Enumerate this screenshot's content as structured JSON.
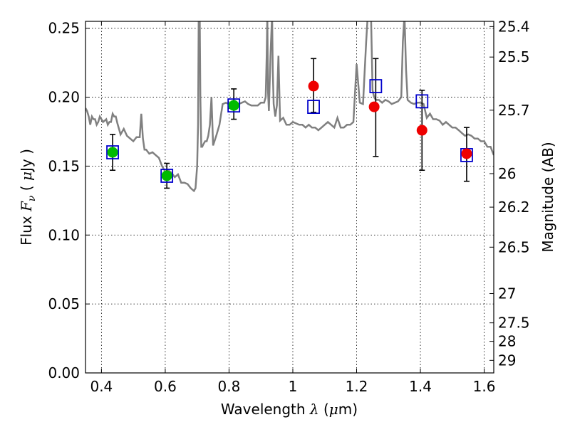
{
  "chart_data": {
    "type": "scatter",
    "xlabel": {
      "pre": "Wavelength ",
      "sym": "λ",
      "mid": " (",
      "mu": "μ",
      "post": "m)"
    },
    "ylabel": {
      "pre": "Flux ",
      "sym": "F",
      "sub": "ν",
      "mid": " ( ",
      "mu": "μ",
      "post": "Jy )"
    },
    "y2label": "Magnitude (AB)",
    "xlim": [
      0.35,
      1.63
    ],
    "ylim": [
      0.0,
      0.255
    ],
    "grid": true,
    "x_ticks": [
      {
        "v": 0.4,
        "label": "0.4"
      },
      {
        "v": 0.6,
        "label": "0.6"
      },
      {
        "v": 0.8,
        "label": "0.8"
      },
      {
        "v": 1.0,
        "label": "1"
      },
      {
        "v": 1.2,
        "label": "1.2"
      },
      {
        "v": 1.4,
        "label": "1.4"
      },
      {
        "v": 1.6,
        "label": "1.6"
      }
    ],
    "y_ticks": [
      {
        "v": 0.0,
        "label": "0.00"
      },
      {
        "v": 0.05,
        "label": "0.05"
      },
      {
        "v": 0.1,
        "label": "0.10"
      },
      {
        "v": 0.15,
        "label": "0.15"
      },
      {
        "v": 0.2,
        "label": "0.20"
      },
      {
        "v": 0.25,
        "label": "0.25"
      }
    ],
    "mag_ticks": [
      {
        "mag": 25.4,
        "label": "25.4"
      },
      {
        "mag": 25.5,
        "label": "25.5"
      },
      {
        "mag": 25.7,
        "label": "25.7"
      },
      {
        "mag": 26.0,
        "label": "26"
      },
      {
        "mag": 26.2,
        "label": "26.2"
      },
      {
        "mag": 26.5,
        "label": "26.5"
      },
      {
        "mag": 27.0,
        "label": "27"
      },
      {
        "mag": 27.5,
        "label": "27.5"
      },
      {
        "mag": 28.0,
        "label": "28"
      },
      {
        "mag": 29.0,
        "label": "29"
      }
    ],
    "series": [
      {
        "marker": "line",
        "color": "#808080",
        "x": [
          0.35,
          0.355,
          0.36,
          0.365,
          0.37,
          0.375,
          0.38,
          0.385,
          0.39,
          0.395,
          0.4,
          0.405,
          0.41,
          0.415,
          0.42,
          0.425,
          0.43,
          0.435,
          0.44,
          0.445,
          0.45,
          0.46,
          0.47,
          0.48,
          0.49,
          0.5,
          0.51,
          0.52,
          0.525,
          0.53,
          0.535,
          0.54,
          0.55,
          0.56,
          0.57,
          0.58,
          0.59,
          0.6,
          0.61,
          0.62,
          0.63,
          0.64,
          0.65,
          0.66,
          0.67,
          0.68,
          0.69,
          0.695,
          0.7,
          0.703,
          0.705,
          0.708,
          0.71,
          0.713,
          0.716,
          0.72,
          0.725,
          0.73,
          0.735,
          0.74,
          0.745,
          0.75,
          0.76,
          0.77,
          0.78,
          0.79,
          0.8,
          0.81,
          0.82,
          0.83,
          0.84,
          0.85,
          0.86,
          0.87,
          0.88,
          0.89,
          0.9,
          0.91,
          0.915,
          0.918,
          0.92,
          0.922,
          0.925,
          0.93,
          0.935,
          0.937,
          0.94,
          0.945,
          0.95,
          0.955,
          0.96,
          0.97,
          0.98,
          0.99,
          1.0,
          1.01,
          1.02,
          1.03,
          1.04,
          1.05,
          1.06,
          1.07,
          1.08,
          1.09,
          1.1,
          1.11,
          1.12,
          1.13,
          1.14,
          1.15,
          1.16,
          1.17,
          1.18,
          1.19,
          1.2,
          1.21,
          1.22,
          1.23,
          1.235,
          1.24,
          1.245,
          1.25,
          1.255,
          1.26,
          1.27,
          1.28,
          1.29,
          1.3,
          1.31,
          1.32,
          1.33,
          1.34,
          1.345,
          1.35,
          1.355,
          1.36,
          1.37,
          1.38,
          1.39,
          1.4,
          1.41,
          1.42,
          1.43,
          1.44,
          1.45,
          1.46,
          1.47,
          1.48,
          1.49,
          1.5,
          1.51,
          1.52,
          1.53,
          1.54,
          1.55,
          1.56,
          1.57,
          1.58,
          1.59,
          1.6,
          1.61,
          1.62,
          1.63
        ],
        "y": [
          0.192,
          0.19,
          0.186,
          0.18,
          0.186,
          0.184,
          0.184,
          0.18,
          0.182,
          0.186,
          0.184,
          0.182,
          0.183,
          0.184,
          0.18,
          0.182,
          0.182,
          0.188,
          0.186,
          0.186,
          0.181,
          0.173,
          0.177,
          0.172,
          0.17,
          0.168,
          0.171,
          0.171,
          0.188,
          0.17,
          0.162,
          0.162,
          0.159,
          0.16,
          0.158,
          0.156,
          0.15,
          0.146,
          0.147,
          0.145,
          0.142,
          0.144,
          0.138,
          0.138,
          0.137,
          0.134,
          0.132,
          0.134,
          0.15,
          0.18,
          0.26,
          0.26,
          0.2,
          0.164,
          0.164,
          0.166,
          0.168,
          0.168,
          0.172,
          0.18,
          0.2,
          0.165,
          0.172,
          0.18,
          0.195,
          0.196,
          0.195,
          0.194,
          0.196,
          0.195,
          0.196,
          0.197,
          0.195,
          0.194,
          0.194,
          0.194,
          0.196,
          0.196,
          0.2,
          0.23,
          0.26,
          0.205,
          0.19,
          0.23,
          0.26,
          0.22,
          0.195,
          0.186,
          0.194,
          0.23,
          0.183,
          0.185,
          0.18,
          0.18,
          0.182,
          0.181,
          0.18,
          0.18,
          0.178,
          0.18,
          0.178,
          0.178,
          0.176,
          0.178,
          0.18,
          0.182,
          0.18,
          0.178,
          0.185,
          0.178,
          0.178,
          0.18,
          0.18,
          0.182,
          0.224,
          0.196,
          0.195,
          0.24,
          0.26,
          0.26,
          0.26,
          0.205,
          0.2,
          0.198,
          0.198,
          0.196,
          0.198,
          0.197,
          0.195,
          0.196,
          0.197,
          0.2,
          0.24,
          0.26,
          0.22,
          0.198,
          0.196,
          0.195,
          0.196,
          0.196,
          0.195,
          0.185,
          0.188,
          0.184,
          0.184,
          0.183,
          0.18,
          0.182,
          0.18,
          0.178,
          0.178,
          0.176,
          0.174,
          0.172,
          0.173,
          0.172,
          0.17,
          0.17,
          0.168,
          0.168,
          0.164,
          0.164,
          0.158
        ]
      },
      {
        "marker": "square",
        "color": "#0000cc",
        "x": [
          0.435,
          0.605,
          0.815,
          1.065,
          1.26,
          1.405,
          1.545
        ],
        "y": [
          0.16,
          0.143,
          0.194,
          0.193,
          0.208,
          0.197,
          0.158
        ]
      },
      {
        "marker": "circle",
        "color": "#00bb00",
        "x": [
          0.435,
          0.605,
          0.815
        ],
        "y": [
          0.16,
          0.143,
          0.194
        ]
      },
      {
        "marker": "circle",
        "color": "#ee0000",
        "x": [
          1.065,
          1.255,
          1.405,
          1.545
        ],
        "y": [
          0.208,
          0.193,
          0.176,
          0.159
        ]
      },
      {
        "marker": "errorbar",
        "color": "#000000",
        "x": [
          0.435,
          0.605,
          0.815,
          1.065,
          1.26,
          1.405,
          1.545
        ],
        "y": [
          0.16,
          0.143,
          0.195,
          0.208,
          0.193,
          0.176,
          0.158
        ],
        "lower": [
          0.147,
          0.134,
          0.184,
          0.189,
          0.157,
          0.147,
          0.139
        ],
        "upper": [
          0.173,
          0.152,
          0.206,
          0.228,
          0.228,
          0.205,
          0.178
        ]
      }
    ]
  }
}
